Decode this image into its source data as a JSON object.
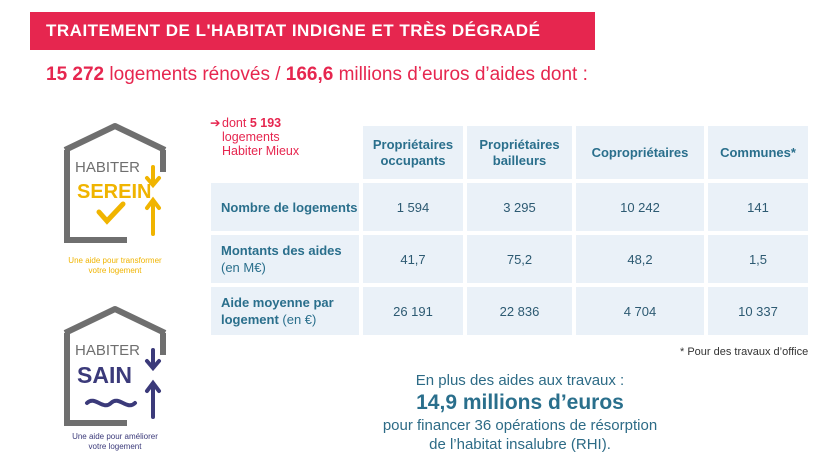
{
  "banner": {
    "title": "TRAITEMENT DE L'HABITAT INDIGNE ET TRÈS DÉGRADÉ"
  },
  "headline": {
    "count": "15 272",
    "count_text": " logements rénovés / ",
    "amount": "166,6",
    "amount_text": " millions d’euros d’aides dont :"
  },
  "logos": {
    "serein": {
      "line1": "HABITER",
      "line2": "SEREIN",
      "tagline1": "Une aide pour transformer",
      "tagline2": "votre logement",
      "color": "#f0b400"
    },
    "sain": {
      "line1": "HABITER",
      "line2": "SAIN",
      "tagline1": "Une aide pour améliorer",
      "tagline2": "votre logement",
      "color": "#3b3a7a"
    }
  },
  "habiter_mieux_note": {
    "arrow": "➔",
    "prefix": "dont ",
    "value": "5 193",
    "line2": "logements",
    "line3": "Habiter Mieux"
  },
  "table": {
    "columns": [
      "Propriétaires occupants",
      "Propriétaires bailleurs",
      "Copropriétaires",
      "Communes*"
    ],
    "rows": [
      {
        "label": "Nombre de logements",
        "unit": "",
        "values": [
          "1 594",
          "3 295",
          "10 242",
          "141"
        ]
      },
      {
        "label": "Montants des aides",
        "unit": " (en M€)",
        "values": [
          "41,7",
          "75,2",
          "48,2",
          "1,5"
        ]
      },
      {
        "label": "Aide moyenne par logement",
        "unit": " (en €)",
        "values": [
          "26 191",
          "22 836",
          "4 704",
          "10 337"
        ]
      }
    ]
  },
  "footnote": "* Pour des travaux d’office",
  "extra": {
    "line1": "En plus des aides aux travaux :",
    "big": "14,9 millions d’euros",
    "line3": "pour financer 36 opérations de résorption",
    "line4": "de l’habitat insalubre (RHI)."
  },
  "colors": {
    "accent": "#e6264f",
    "teal": "#2a6f8c",
    "cell_bg": "#eaf1f8",
    "yellow": "#f0b400",
    "navy": "#3b3a7a"
  }
}
